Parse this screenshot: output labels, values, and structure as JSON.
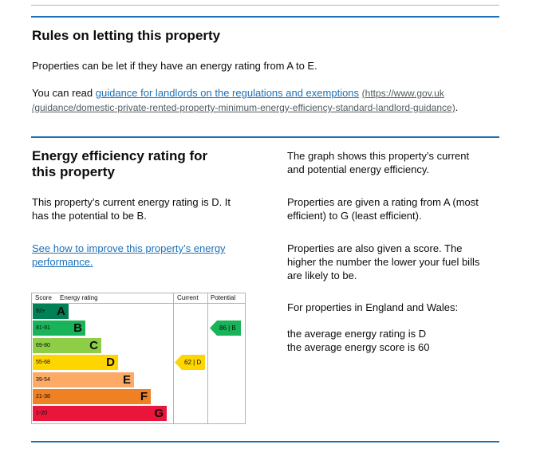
{
  "rules": {
    "heading": "Rules on letting this property",
    "para1": "Properties can be let if they have an energy rating from A to E.",
    "para2_prefix": "You can read",
    "guidance_link": "guidance for landlords on the regulations and exemptions",
    "url_line1": "(https://www.gov.uk",
    "url_line2": "/guidance/domestic-private-rented-property-minimum-energy-efficiency-standard-landlord-guidance)",
    "para2_suffix": "."
  },
  "efficiency": {
    "heading_line1": "Energy efficiency rating for",
    "heading_line2": "this property",
    "current_text_line1": "This property’s current energy rating is D. It",
    "current_text_line2": "has the potential to be B.",
    "improve_link_line1": "See how to improve this property’s energy",
    "improve_link_line2": "performance.",
    "right": {
      "graph_line1": "The graph shows this property’s current",
      "graph_line2": "and potential energy efficiency.",
      "ratings_line1": "Properties are given a rating from A (most",
      "ratings_line2": "efficient) to G (least efficient).",
      "score_line1": "Properties are also given a score. The",
      "score_line2": "higher the number the lower your fuel bills",
      "score_line3": "are likely to be.",
      "england_wales": "For properties in England and Wales:",
      "avg_rating": "the average energy rating is D",
      "avg_score": "the average energy score is 60"
    }
  },
  "chart": {
    "col_score": "Score",
    "col_rating": "Energy rating",
    "col_current": "Current",
    "col_potential": "Potential",
    "bands": [
      {
        "score": "92+",
        "letter": "A",
        "color": "#008054",
        "width_fraction": 0.22
      },
      {
        "score": "81-91",
        "letter": "B",
        "color": "#19b459",
        "width_fraction": 0.32
      },
      {
        "score": "69-80",
        "letter": "C",
        "color": "#8dce46",
        "width_fraction": 0.42
      },
      {
        "score": "55-68",
        "letter": "D",
        "color": "#ffd500",
        "width_fraction": 0.52
      },
      {
        "score": "39-54",
        "letter": "E",
        "color": "#fcaa65",
        "width_fraction": 0.62
      },
      {
        "score": "21-38",
        "letter": "F",
        "color": "#ef8023",
        "width_fraction": 0.72
      },
      {
        "score": "1-20",
        "letter": "G",
        "color": "#e9153b",
        "width_fraction": 0.82
      }
    ],
    "current": {
      "label": "62 | D",
      "score": 62,
      "letter": "D",
      "color": "#ffd500",
      "band_index": 3
    },
    "potential": {
      "label": "86 | B",
      "score": 86,
      "letter": "B",
      "color": "#19b459",
      "band_index": 1
    }
  }
}
